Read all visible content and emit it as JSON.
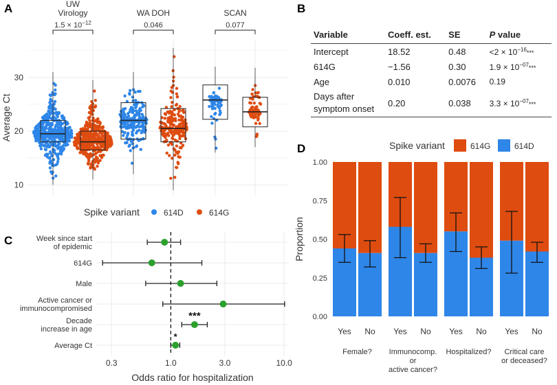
{
  "colors": {
    "blue": "#2e86e8",
    "orange": "#de4c10",
    "green": "#2ca02c",
    "grid": "#ebebeb",
    "text": "#222222"
  },
  "panel_labels": {
    "a": "A",
    "b": "B",
    "c": "C",
    "d": "D"
  },
  "legend_a": {
    "title": "Spike variant",
    "items": [
      {
        "label": "614D",
        "color": "#2e86e8"
      },
      {
        "label": "614G",
        "color": "#de4c10"
      }
    ]
  },
  "legend_d": {
    "title": "Spike variant",
    "items": [
      {
        "label": "614G",
        "color": "#de4c10"
      },
      {
        "label": "614D",
        "color": "#2e86e8"
      }
    ]
  },
  "table": {
    "headers": {
      "variable": "Variable",
      "coeff": "Coeff. est.",
      "se": "SE",
      "p_italic": "P",
      "p_rest": " value"
    },
    "rows": [
      {
        "variable": "Intercept",
        "coeff": "18.52",
        "se": "0.48",
        "p": "<2 × 10",
        "p_exp": "−16",
        "p_stars": "***"
      },
      {
        "variable": "614G",
        "coeff": "−1.56",
        "se": "0.30",
        "p": "1.9 × 10",
        "p_exp": "−07",
        "p_stars": "***"
      },
      {
        "variable": "Age",
        "coeff": "0.010",
        "se": "0.0076",
        "p": "0.19",
        "p_exp": "",
        "p_stars": ""
      },
      {
        "variable": "Days after symptom onset",
        "coeff": "0.20",
        "se": "0.038",
        "p": "3.3 × 10",
        "p_exp": "−07",
        "p_stars": "***"
      }
    ]
  },
  "chart_data": [
    {
      "panel": "A",
      "type": "scatter",
      "ylabel": "Average Ct",
      "ylim": [
        8,
        37
      ],
      "yticks": [
        10,
        20,
        30
      ],
      "groups": [
        {
          "title": "UW\nVirology",
          "pvalue": "1.5 × 10",
          "pexp": "−12",
          "series": [
            {
              "name": "614D",
              "median": 19.5,
              "q1": 18,
              "q3": 22,
              "min": 10,
              "max": 31
            },
            {
              "name": "614G",
              "median": 18,
              "q1": 16.5,
              "q3": 20,
              "min": 11,
              "max": 29.5
            }
          ]
        },
        {
          "title": "WA DOH",
          "pvalue": "0.046",
          "pexp": "",
          "series": [
            {
              "name": "614D",
              "median": 22,
              "q1": 18.5,
              "q3": 25.3,
              "min": 12,
              "max": 31
            },
            {
              "name": "614G",
              "median": 20.5,
              "q1": 18,
              "q3": 24.2,
              "min": 9,
              "max": 35.5
            }
          ]
        },
        {
          "title": "SCAN",
          "pvalue": "0.077",
          "pexp": "",
          "series": [
            {
              "name": "614D",
              "median": 25.8,
              "q1": 22.2,
              "q3": 28.6,
              "min": 16,
              "max": 32
            },
            {
              "name": "614G",
              "median": 23.6,
              "q1": 20.8,
              "q3": 26.3,
              "min": 17,
              "max": 31.8
            }
          ]
        }
      ]
    },
    {
      "panel": "C",
      "type": "scatter",
      "xlabel": "Odds ratio for hospitalization",
      "xscale": "log",
      "xlim": [
        0.22,
        11
      ],
      "xticks": [
        {
          "v": 0.3,
          "label": "0.3"
        },
        {
          "v": 1,
          "label": "1.0"
        },
        {
          "v": 3,
          "label": "3.0"
        },
        {
          "v": 10,
          "label": "10.0"
        }
      ],
      "reference_line": 1,
      "points": [
        {
          "label": "Week since start\nof epidemic",
          "or": 0.88,
          "lo": 0.62,
          "hi": 1.22,
          "stars": ""
        },
        {
          "label": "614G",
          "or": 0.68,
          "lo": 0.25,
          "hi": 1.88,
          "stars": ""
        },
        {
          "label": "Male",
          "or": 1.22,
          "lo": 0.6,
          "hi": 2.55,
          "stars": ""
        },
        {
          "label": "Active cancer or\nimmunocompromised",
          "or": 2.9,
          "lo": 0.85,
          "hi": 10.1,
          "stars": ""
        },
        {
          "label": "Decade\nincrease in age",
          "or": 1.62,
          "lo": 1.25,
          "hi": 2.1,
          "stars": "***"
        },
        {
          "label": "Average Ct",
          "or": 1.1,
          "lo": 1.0,
          "hi": 1.2,
          "stars": "*"
        }
      ]
    },
    {
      "panel": "D",
      "type": "bar",
      "ylabel": "Proportion",
      "ylim": [
        0,
        1
      ],
      "yticks": [
        "0.00",
        "0.25",
        "0.50",
        "0.75",
        "1.00"
      ],
      "series": [
        {
          "name": "614D",
          "color": "#2e86e8"
        },
        {
          "name": "614G",
          "color": "#de4c10"
        }
      ],
      "groups": [
        {
          "label": "Female?",
          "bars": [
            {
              "label": "Yes",
              "p614d": 0.44,
              "lo": 0.35,
              "hi": 0.53
            },
            {
              "label": "No",
              "p614d": 0.41,
              "lo": 0.32,
              "hi": 0.49
            }
          ]
        },
        {
          "label": "Immunocomp.\nor\nactive cancer?",
          "bars": [
            {
              "label": "Yes",
              "p614d": 0.58,
              "lo": 0.38,
              "hi": 0.77
            },
            {
              "label": "No",
              "p614d": 0.41,
              "lo": 0.35,
              "hi": 0.47
            }
          ]
        },
        {
          "label": "Hospitalized?",
          "bars": [
            {
              "label": "Yes",
              "p614d": 0.55,
              "lo": 0.42,
              "hi": 0.67
            },
            {
              "label": "No",
              "p614d": 0.38,
              "lo": 0.31,
              "hi": 0.45
            }
          ]
        },
        {
          "label": "Critical care\nor deceased?",
          "bars": [
            {
              "label": "Yes",
              "p614d": 0.49,
              "lo": 0.28,
              "hi": 0.68
            },
            {
              "label": "No",
              "p614d": 0.42,
              "lo": 0.35,
              "hi": 0.48
            }
          ]
        }
      ]
    }
  ]
}
